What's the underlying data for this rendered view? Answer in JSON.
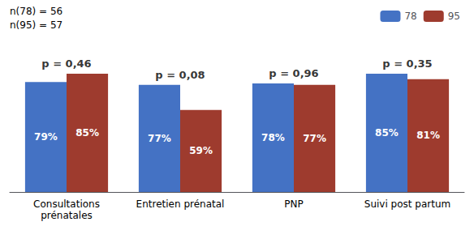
{
  "chart_data": {
    "type": "bar",
    "categories": [
      "Consultations\nprénatales",
      "Entretien prénatal",
      "PNP",
      "Suivi post partum"
    ],
    "series": [
      {
        "name": "78",
        "color": "#4472C4",
        "values": [
          79,
          77,
          78,
          85
        ],
        "value_labels": [
          "79%",
          "77%",
          "78%",
          "85%"
        ]
      },
      {
        "name": "95",
        "color": "#9E3B2E",
        "values": [
          85,
          59,
          77,
          81
        ],
        "value_labels": [
          "85%",
          "59%",
          "77%",
          "81%"
        ]
      }
    ],
    "annotations": [
      {
        "text": "n(78) = 56"
      },
      {
        "text": "n(95) = 57"
      },
      {
        "text": "p = 0,46",
        "category": "Consultations\nprénatales"
      },
      {
        "text": "p = 0,08",
        "category": "Entretien prénatal"
      },
      {
        "text": "p = 0,96",
        "category": "PNP"
      },
      {
        "text": "p = 0,35",
        "category": "Suivi post partum"
      }
    ],
    "ylim": [
      0,
      110
    ],
    "tick_labels": "x",
    "grid": false,
    "legend": "top-right",
    "data_labels": true
  }
}
